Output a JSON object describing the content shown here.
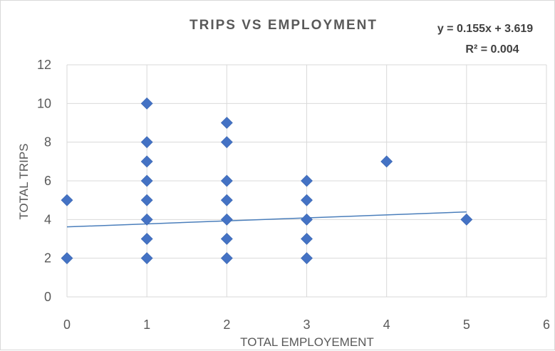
{
  "chart_data": {
    "type": "scatter",
    "title": "TRIPS VS EMPLOYMENT",
    "xlabel": "TOTAL EMPLOYEMENT",
    "ylabel": "TOTAL TRIPS",
    "xlim": [
      0,
      6
    ],
    "ylim": [
      0,
      12
    ],
    "x_ticks": [
      "0",
      "1",
      "2",
      "3",
      "4",
      "5",
      "6"
    ],
    "y_ticks": [
      "0",
      "2",
      "4",
      "6",
      "8",
      "10",
      "12"
    ],
    "grid": "vertical and horizontal major gridlines",
    "legend": "none",
    "marker": "diamond",
    "colors": {
      "points": "#4472c4",
      "trendline": "#4a7ebb",
      "grid": "#d9d9d9",
      "text": "#595959"
    },
    "points": [
      {
        "x": 0,
        "y": 5
      },
      {
        "x": 0,
        "y": 2
      },
      {
        "x": 1,
        "y": 10
      },
      {
        "x": 1,
        "y": 8
      },
      {
        "x": 1,
        "y": 7
      },
      {
        "x": 1,
        "y": 6
      },
      {
        "x": 1,
        "y": 5
      },
      {
        "x": 1,
        "y": 4
      },
      {
        "x": 1,
        "y": 3
      },
      {
        "x": 1,
        "y": 2
      },
      {
        "x": 2,
        "y": 9
      },
      {
        "x": 2,
        "y": 8
      },
      {
        "x": 2,
        "y": 6
      },
      {
        "x": 2,
        "y": 5
      },
      {
        "x": 2,
        "y": 4
      },
      {
        "x": 2,
        "y": 3
      },
      {
        "x": 2,
        "y": 2
      },
      {
        "x": 3,
        "y": 6
      },
      {
        "x": 3,
        "y": 5
      },
      {
        "x": 3,
        "y": 4
      },
      {
        "x": 3,
        "y": 3
      },
      {
        "x": 3,
        "y": 2
      },
      {
        "x": 4,
        "y": 7
      },
      {
        "x": 5,
        "y": 4
      }
    ],
    "trendline": {
      "type": "linear",
      "slope": 0.155,
      "intercept": 3.619,
      "x_range": [
        0,
        5
      ],
      "equation": "y = 0.155x + 3.619",
      "r_squared": "R² = 0.004"
    }
  }
}
